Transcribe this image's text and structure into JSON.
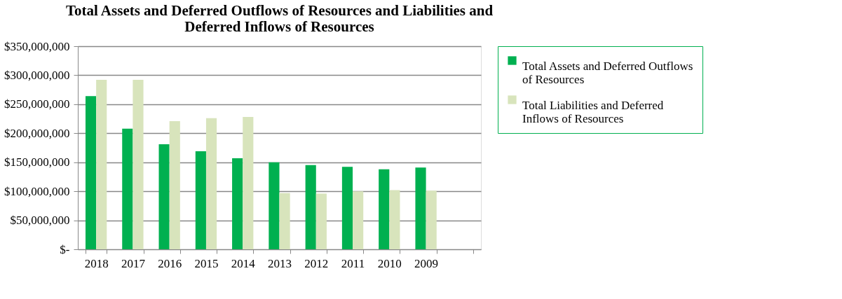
{
  "chart_data": {
    "type": "bar",
    "title": "Total Assets and Deferred Outflows of Resources and Liabilities and Deferred Inflows of Resources",
    "categories": [
      "2018",
      "2017",
      "2016",
      "2015",
      "2014",
      "2013",
      "2012",
      "2011",
      "2010",
      "2009",
      null
    ],
    "series": [
      {
        "name": "Total Assets and Deferred Outflows of Resources",
        "color": "#00b050",
        "values": [
          264000000,
          208000000,
          181000000,
          169000000,
          157000000,
          150000000,
          145000000,
          142000000,
          138000000,
          141000000,
          null
        ]
      },
      {
        "name": "Total Liabilities and Deferred Inflows of Resources",
        "color": "#d8e4bc",
        "values": [
          292000000,
          292000000,
          221000000,
          226000000,
          228000000,
          97000000,
          96000000,
          100000000,
          102000000,
          101000000,
          null
        ]
      }
    ],
    "ylim": [
      0,
      350000000
    ],
    "yticks": [
      {
        "value": 0,
        "label": "$-"
      },
      {
        "value": 50000000,
        "label": "$50,000,000"
      },
      {
        "value": 100000000,
        "label": "$100,000,000"
      },
      {
        "value": 150000000,
        "label": "$150,000,000"
      },
      {
        "value": 200000000,
        "label": "$200,000,000"
      },
      {
        "value": 250000000,
        "label": "$250,000,000"
      },
      {
        "value": 300000000,
        "label": "$300,000,000"
      },
      {
        "value": 350000000,
        "label": "$350,000,000"
      }
    ],
    "grid": "y",
    "legend": "right"
  }
}
